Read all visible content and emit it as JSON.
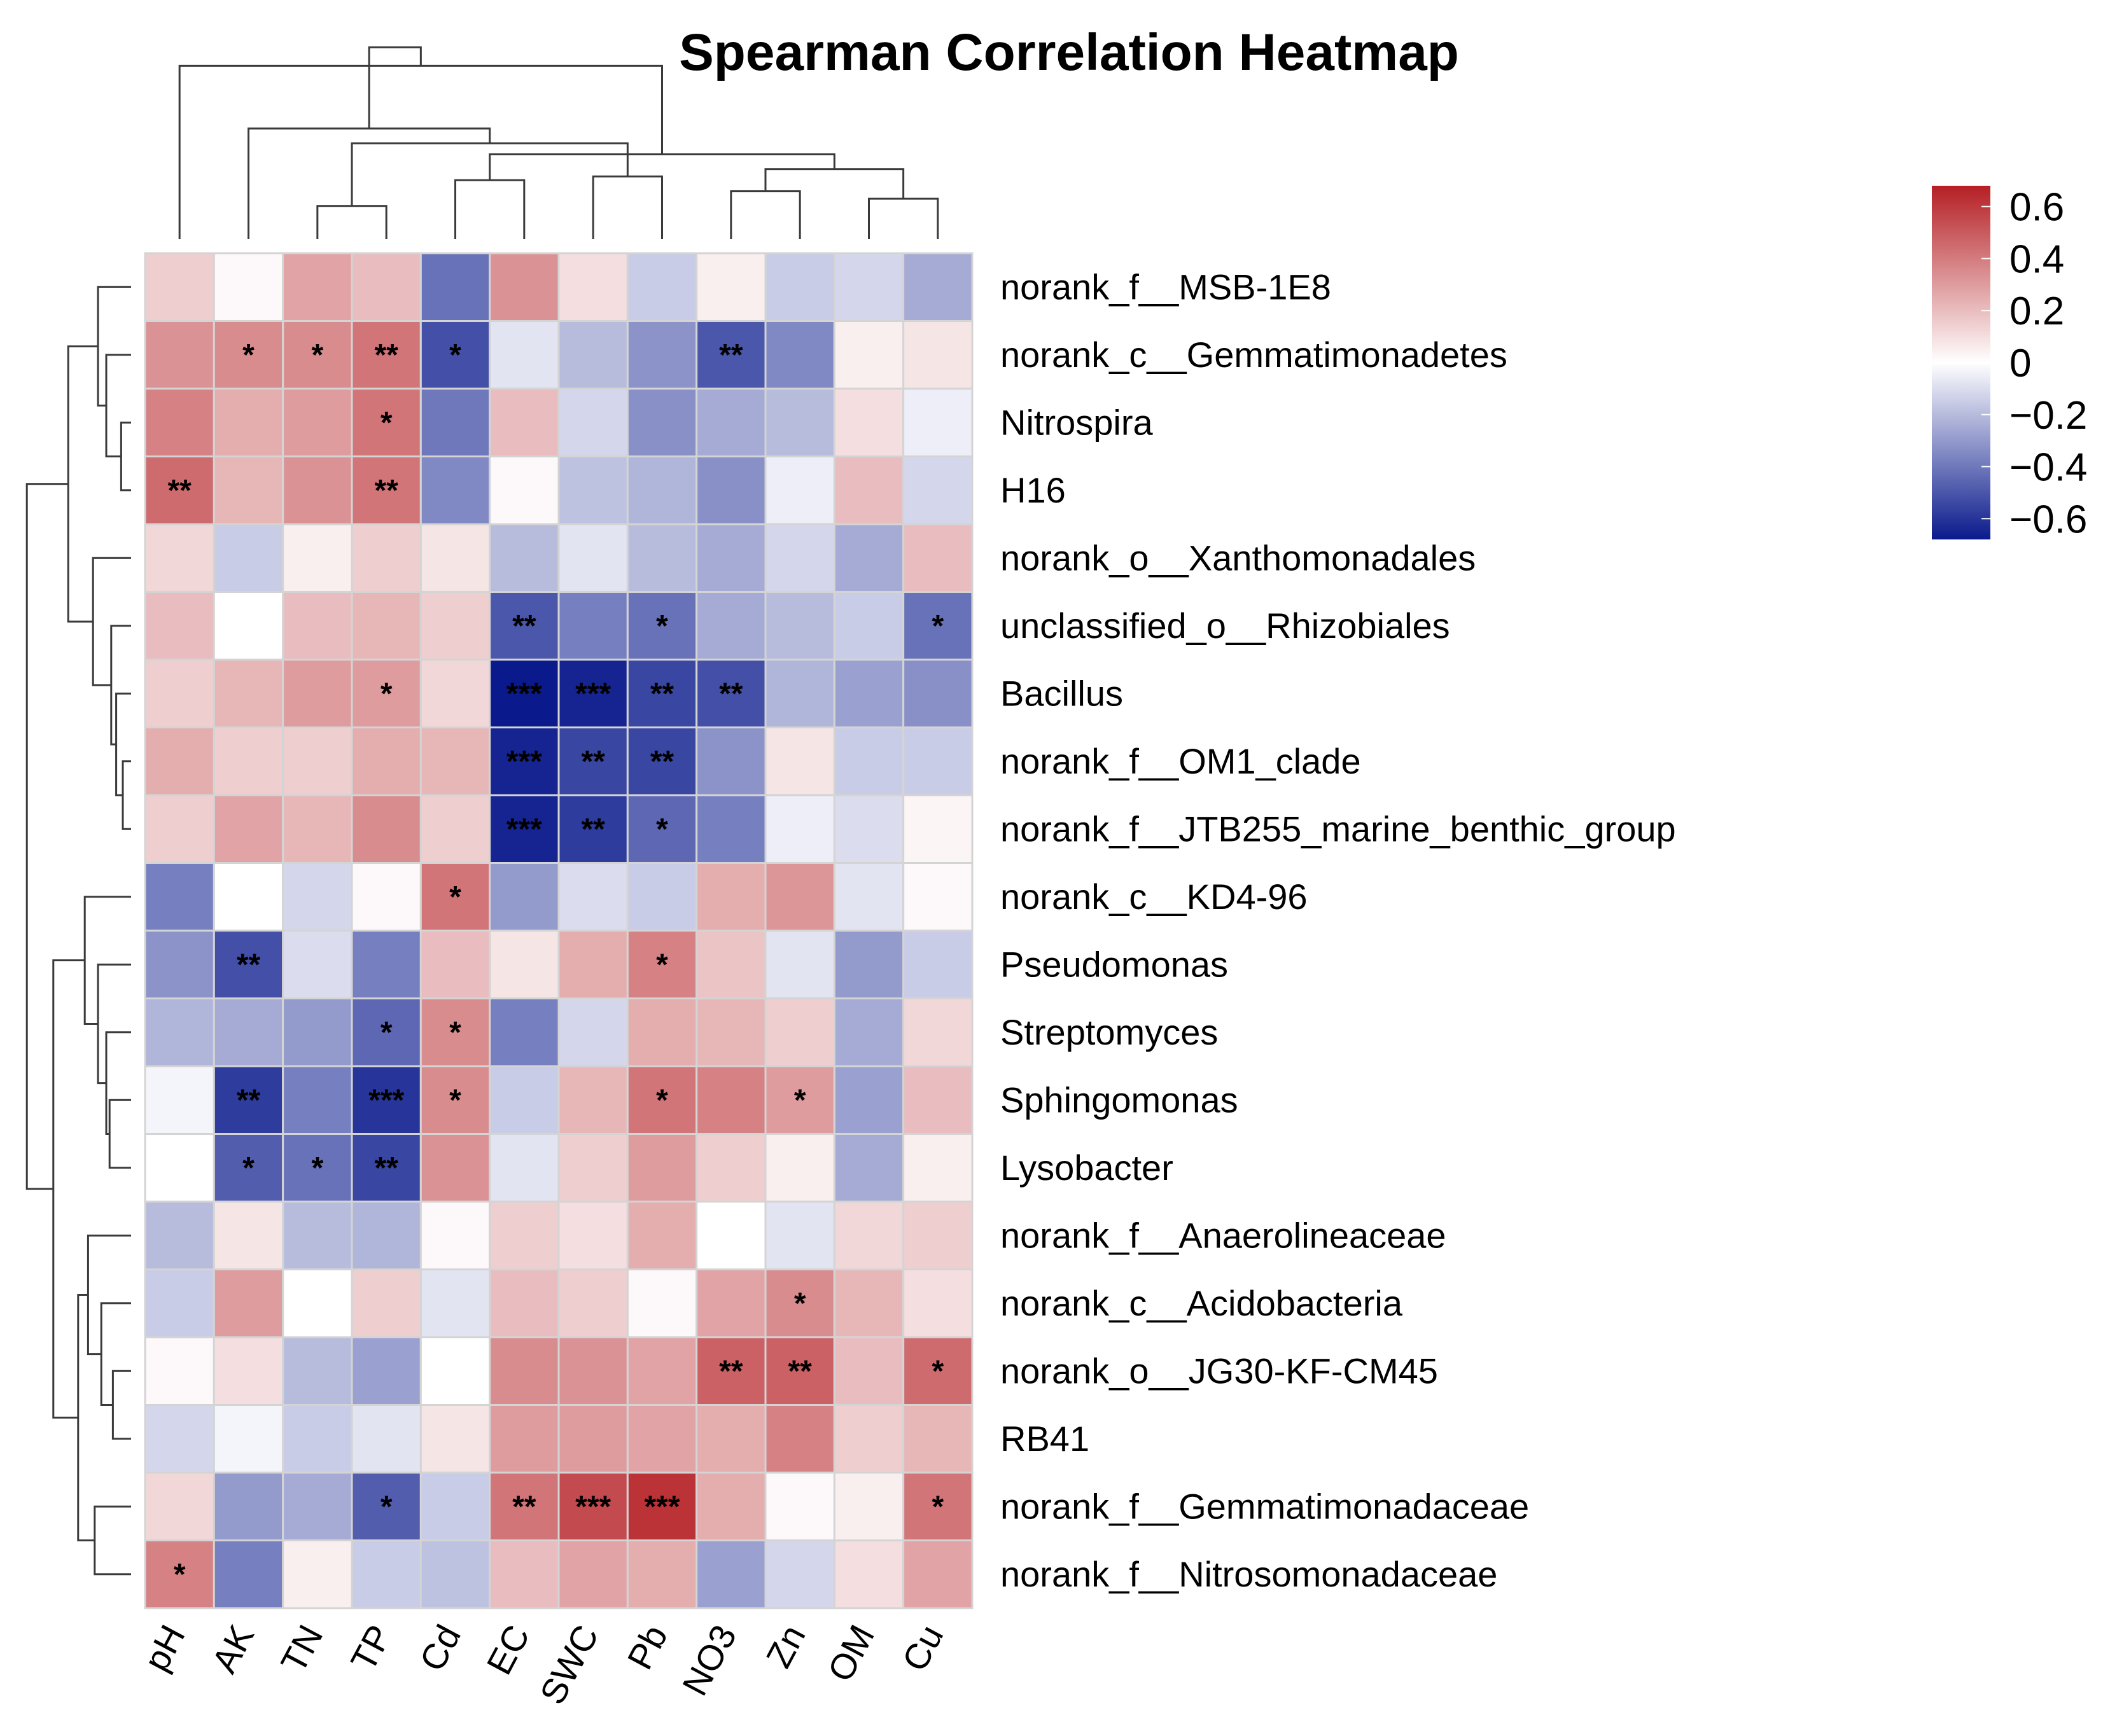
{
  "chart_data": {
    "type": "heatmap",
    "title": "Spearman Correlation Heatmap",
    "columns": [
      "pH",
      "AK",
      "TN",
      "TP",
      "Cd",
      "EC",
      "SWC",
      "Pb",
      "NO3",
      "Zn",
      "OM",
      "Cu"
    ],
    "rows": [
      "norank_f__MSB-1E8",
      "norank_c__Gemmatimonadetes",
      "Nitrospira",
      "H16",
      "norank_o__Xanthomonadales",
      "unclassified_o__Rhizobiales",
      "Bacillus",
      "norank_f__OM1_clade",
      "norank_f__JTB255_marine_benthic_group",
      "norank_c__KD4-96",
      "Pseudomonas",
      "Streptomyces",
      "Sphingomonas",
      "Lysobacter",
      "norank_f__Anaerolineaceae",
      "norank_c__Acidobacteria",
      "norank_o__JG30-KF-CM45",
      "RB41",
      "norank_f__Gemmatimonadaceae",
      "norank_f__Nitrosomonadaceae"
    ],
    "values": [
      [
        0.15,
        0.02,
        0.28,
        0.2,
        -0.42,
        0.33,
        0.1,
        -0.15,
        0.05,
        -0.15,
        -0.12,
        -0.25
      ],
      [
        0.33,
        0.35,
        0.35,
        0.42,
        -0.52,
        -0.08,
        -0.2,
        -0.32,
        -0.5,
        -0.35,
        0.05,
        0.08
      ],
      [
        0.38,
        0.25,
        0.3,
        0.42,
        -0.4,
        0.2,
        -0.12,
        -0.33,
        -0.25,
        -0.2,
        0.1,
        -0.05
      ],
      [
        0.45,
        0.22,
        0.33,
        0.42,
        -0.35,
        0.02,
        -0.18,
        -0.22,
        -0.33,
        -0.05,
        0.2,
        -0.12
      ],
      [
        0.12,
        -0.15,
        0.05,
        0.15,
        0.08,
        -0.2,
        -0.08,
        -0.2,
        -0.25,
        -0.12,
        -0.25,
        0.2
      ],
      [
        0.2,
        0.0,
        0.2,
        0.22,
        0.15,
        -0.5,
        -0.38,
        -0.42,
        -0.25,
        -0.2,
        -0.15,
        -0.42
      ],
      [
        0.15,
        0.22,
        0.3,
        0.3,
        0.12,
        -0.68,
        -0.65,
        -0.55,
        -0.52,
        -0.22,
        -0.28,
        -0.33
      ],
      [
        0.25,
        0.15,
        0.15,
        0.25,
        0.22,
        -0.65,
        -0.55,
        -0.55,
        -0.32,
        0.08,
        -0.15,
        -0.15
      ],
      [
        0.15,
        0.28,
        0.22,
        0.35,
        0.15,
        -0.65,
        -0.58,
        -0.45,
        -0.38,
        -0.05,
        -0.1,
        0.03
      ],
      [
        -0.38,
        0.0,
        -0.12,
        0.02,
        0.42,
        -0.3,
        -0.1,
        -0.15,
        0.25,
        0.32,
        -0.08,
        0.02
      ],
      [
        -0.32,
        -0.52,
        -0.1,
        -0.38,
        0.2,
        0.08,
        0.25,
        0.38,
        0.18,
        -0.08,
        -0.3,
        -0.15
      ],
      [
        -0.22,
        -0.25,
        -0.3,
        -0.45,
        0.35,
        -0.38,
        -0.12,
        0.25,
        0.22,
        0.15,
        -0.25,
        0.12
      ],
      [
        -0.03,
        -0.58,
        -0.38,
        -0.6,
        0.35,
        -0.15,
        0.22,
        0.42,
        0.38,
        0.3,
        -0.28,
        0.2
      ],
      [
        0.0,
        -0.48,
        -0.42,
        -0.55,
        0.33,
        -0.08,
        0.15,
        0.3,
        0.15,
        0.05,
        -0.25,
        0.05
      ],
      [
        -0.2,
        0.08,
        -0.2,
        -0.22,
        0.02,
        0.15,
        0.1,
        0.25,
        0.0,
        -0.08,
        0.12,
        0.15
      ],
      [
        -0.15,
        0.3,
        0.0,
        0.15,
        -0.08,
        0.2,
        0.15,
        0.02,
        0.28,
        0.35,
        0.22,
        0.1
      ],
      [
        0.02,
        0.1,
        -0.2,
        -0.28,
        0.0,
        0.35,
        0.33,
        0.28,
        0.48,
        0.48,
        0.2,
        0.45
      ],
      [
        -0.12,
        -0.03,
        -0.15,
        -0.08,
        0.08,
        0.3,
        0.3,
        0.28,
        0.25,
        0.38,
        0.15,
        0.22
      ],
      [
        0.12,
        -0.3,
        -0.25,
        -0.48,
        -0.15,
        0.42,
        0.55,
        0.62,
        0.25,
        0.02,
        0.05,
        0.42
      ],
      [
        0.38,
        -0.38,
        0.05,
        -0.15,
        -0.18,
        0.2,
        0.28,
        0.25,
        -0.28,
        -0.12,
        0.1,
        0.28
      ]
    ],
    "significance": [
      [
        "",
        "",
        "",
        "",
        "",
        "",
        "",
        "",
        "",
        "",
        "",
        ""
      ],
      [
        "",
        "*",
        "*",
        "**",
        "*",
        "",
        "",
        "",
        "**",
        "",
        "",
        ""
      ],
      [
        "",
        "",
        "",
        "*",
        "",
        "",
        "",
        "",
        "",
        "",
        "",
        ""
      ],
      [
        "**",
        "",
        "",
        "**",
        "",
        "",
        "",
        "",
        "",
        "",
        "",
        ""
      ],
      [
        "",
        "",
        "",
        "",
        "",
        "",
        "",
        "",
        "",
        "",
        "",
        ""
      ],
      [
        "",
        "",
        "",
        "",
        "",
        "**",
        "",
        "*",
        "",
        "",
        "",
        "*"
      ],
      [
        "",
        "",
        "",
        "*",
        "",
        "***",
        "***",
        "**",
        "**",
        "",
        "",
        ""
      ],
      [
        "",
        "",
        "",
        "",
        "",
        "***",
        "**",
        "**",
        "",
        "",
        "",
        ""
      ],
      [
        "",
        "",
        "",
        "",
        "",
        "***",
        "**",
        "*",
        "",
        "",
        "",
        ""
      ],
      [
        "",
        "",
        "",
        "",
        "*",
        "",
        "",
        "",
        "",
        "",
        "",
        ""
      ],
      [
        "",
        "**",
        "",
        "",
        "",
        "",
        "",
        "*",
        "",
        "",
        "",
        ""
      ],
      [
        "",
        "",
        "",
        "*",
        "*",
        "",
        "",
        "",
        "",
        "",
        "",
        ""
      ],
      [
        "",
        "**",
        "",
        "***",
        "*",
        "",
        "",
        "*",
        "",
        "*",
        "",
        ""
      ],
      [
        "",
        "*",
        "*",
        "**",
        "",
        "",
        "",
        "",
        "",
        "",
        "",
        ""
      ],
      [
        "",
        "",
        "",
        "",
        "",
        "",
        "",
        "",
        "",
        "",
        "",
        ""
      ],
      [
        "",
        "",
        "",
        "",
        "",
        "",
        "",
        "",
        "",
        "*",
        "",
        ""
      ],
      [
        "",
        "",
        "",
        "",
        "",
        "",
        "",
        "",
        "**",
        "**",
        "",
        "*"
      ],
      [
        "",
        "",
        "",
        "",
        "",
        "",
        "",
        "",
        "",
        "",
        "",
        ""
      ],
      [
        "",
        "",
        "",
        "*",
        "",
        "**",
        "***",
        "***",
        "",
        "",
        "",
        "*"
      ],
      [
        "*",
        "",
        "",
        "",
        "",
        "",
        "",
        "",
        "",
        "",
        "",
        ""
      ]
    ],
    "color_scale": {
      "min": -0.68,
      "max": 0.68,
      "low_color": "#0a1a8c",
      "mid_color": "#ffffff",
      "high_color": "#b51f24",
      "ticks": [
        {
          "value": 0.6,
          "label": "0.6"
        },
        {
          "value": 0.4,
          "label": "0.4"
        },
        {
          "value": 0.2,
          "label": "0.2"
        },
        {
          "value": 0.0,
          "label": "0"
        },
        {
          "value": -0.2,
          "label": "−0.2"
        },
        {
          "value": -0.4,
          "label": "−0.4"
        },
        {
          "value": -0.6,
          "label": "−0.6"
        }
      ]
    },
    "col_dendrogram": {
      "merges": [
        [
          2,
          3
        ],
        [
          4,
          5
        ],
        [
          6,
          7
        ],
        [
          8,
          9
        ],
        [
          10,
          11
        ],
        [
          -1,
          -3
        ],
        [
          -4,
          -5
        ],
        [
          1,
          -6
        ],
        [
          -7,
          -2
        ],
        [
          0,
          -9
        ],
        [
          -10,
          -8
        ]
      ],
      "heights": [
        0.9,
        1.6,
        1.7,
        1.3,
        1.1,
        2.6,
        1.9,
        3.0,
        2.3,
        4.7,
        5.2
      ]
    },
    "row_dendrogram": {
      "merges": [
        [
          2,
          3
        ],
        [
          1,
          -1
        ],
        [
          0,
          -2
        ],
        [
          7,
          8
        ],
        [
          6,
          -4
        ],
        [
          5,
          -5
        ],
        [
          4,
          -6
        ],
        [
          -3,
          -7
        ],
        [
          13,
          12
        ],
        [
          -9,
          11
        ],
        [
          -10,
          10
        ],
        [
          -11,
          9
        ],
        [
          17,
          16
        ],
        [
          -13,
          15
        ],
        [
          -14,
          14
        ],
        [
          19,
          18
        ],
        [
          -16,
          -15
        ],
        [
          -12,
          -17
        ],
        [
          -8,
          -18
        ]
      ],
      "heights": [
        0.6,
        1.5,
        2.0,
        0.5,
        0.9,
        1.2,
        2.3,
        3.8,
        1.3,
        1.5,
        2.0,
        2.8,
        1.1,
        1.8,
        2.6,
        2.2,
        3.2,
        4.7,
        6.3
      ]
    }
  }
}
